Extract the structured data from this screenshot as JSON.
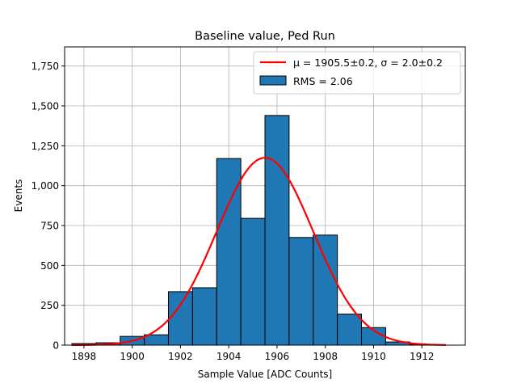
{
  "chart_data": {
    "type": "bar",
    "title": "Baseline value, Ped Run",
    "xlabel": "Sample Value [ADC Counts]",
    "ylabel": "Events",
    "xlim": [
      1897.2,
      1913.8
    ],
    "ylim": [
      0,
      1870
    ],
    "xticks": [
      1898,
      1900,
      1902,
      1904,
      1906,
      1908,
      1910,
      1912
    ],
    "yticks": [
      0,
      250,
      500,
      750,
      1000,
      1250,
      1500,
      1750
    ],
    "grid": true,
    "legend_position": "top-right",
    "histogram": {
      "name": "RMS = 2.06",
      "color": "#1f77b4",
      "edge_color": "#000000",
      "bin_edges": [
        1897.5,
        1898.5,
        1899.5,
        1900.5,
        1901.5,
        1902.5,
        1903.5,
        1904.5,
        1905.5,
        1906.5,
        1907.5,
        1908.5,
        1909.5,
        1910.5,
        1911.5,
        1912.5
      ],
      "counts": [
        10,
        15,
        55,
        65,
        335,
        360,
        1170,
        795,
        1440,
        675,
        690,
        195,
        110,
        20,
        5
      ]
    },
    "fit": {
      "name_math": "μ = 1905.5±0.2, σ = 2.0±0.2",
      "color": "#ff0000",
      "mu": 1905.5,
      "sigma": 2.0,
      "amplitude": 1175,
      "x_range": [
        1897.5,
        1913.0
      ]
    },
    "legend": [
      {
        "label": "μ = 1905.5±0.2, σ = 2.0±0.2",
        "kind": "line"
      },
      {
        "label": "RMS = 2.06",
        "kind": "patch"
      }
    ]
  }
}
